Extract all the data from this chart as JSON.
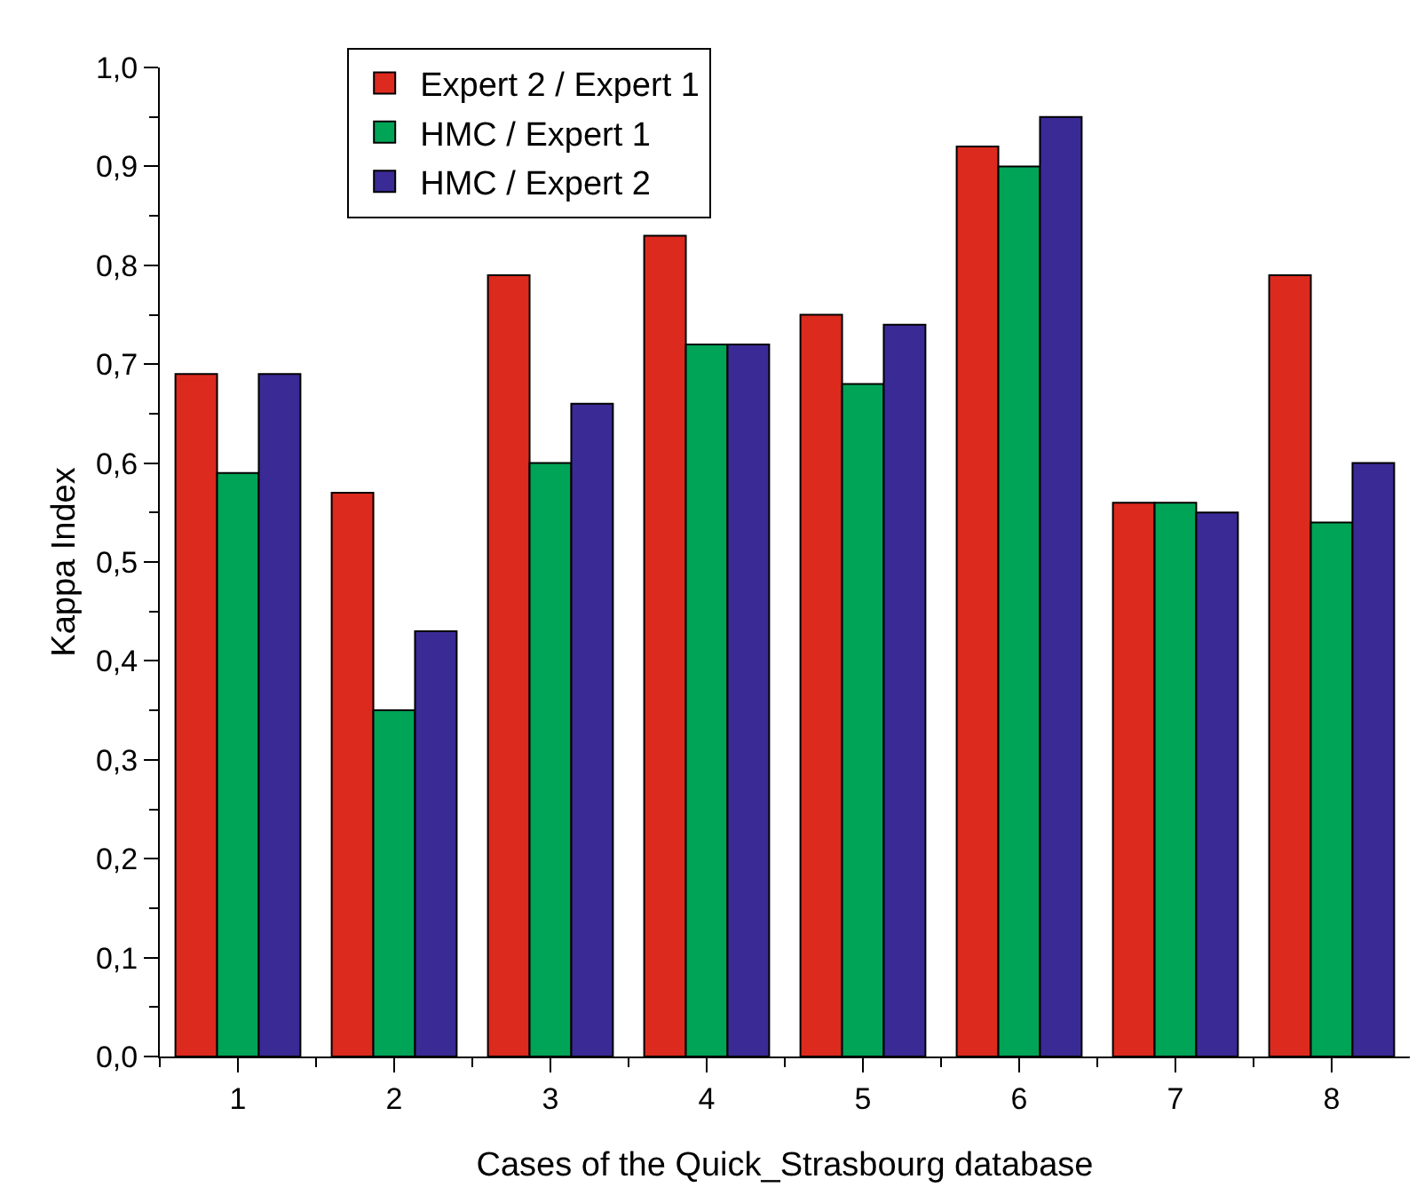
{
  "chart_data": {
    "type": "bar",
    "xlabel": "Cases of the Quick_Strasbourg database",
    "ylabel": "Kappa Index",
    "categories": [
      "1",
      "2",
      "3",
      "4",
      "5",
      "6",
      "7",
      "8"
    ],
    "series": [
      {
        "name": "Expert 2 / Expert 1",
        "color": "#dc2a1e",
        "values": [
          0.69,
          0.57,
          0.79,
          0.83,
          0.75,
          0.92,
          0.56,
          0.79
        ]
      },
      {
        "name": "HMC / Expert 1",
        "color": "#00a457",
        "values": [
          0.59,
          0.35,
          0.6,
          0.72,
          0.68,
          0.9,
          0.56,
          0.54
        ]
      },
      {
        "name": "HMC / Expert 2",
        "color": "#3a2a96",
        "values": [
          0.69,
          0.43,
          0.66,
          0.72,
          0.74,
          0.95,
          0.55,
          0.6
        ]
      }
    ],
    "ylim": [
      0,
      1
    ],
    "yticks": [
      {
        "value": 0,
        "label": "0,0"
      },
      {
        "value": 0.1,
        "label": "0,1"
      },
      {
        "value": 0.2,
        "label": "0,2"
      },
      {
        "value": 0.3,
        "label": "0,3"
      },
      {
        "value": 0.4,
        "label": "0,4"
      },
      {
        "value": 0.5,
        "label": "0,5"
      },
      {
        "value": 0.6,
        "label": "0,6"
      },
      {
        "value": 0.7,
        "label": "0,7"
      },
      {
        "value": 0.8,
        "label": "0,8"
      },
      {
        "value": 0.9,
        "label": "0,9"
      },
      {
        "value": 1,
        "label": "1,0"
      }
    ],
    "grid": false,
    "legend": "top"
  }
}
